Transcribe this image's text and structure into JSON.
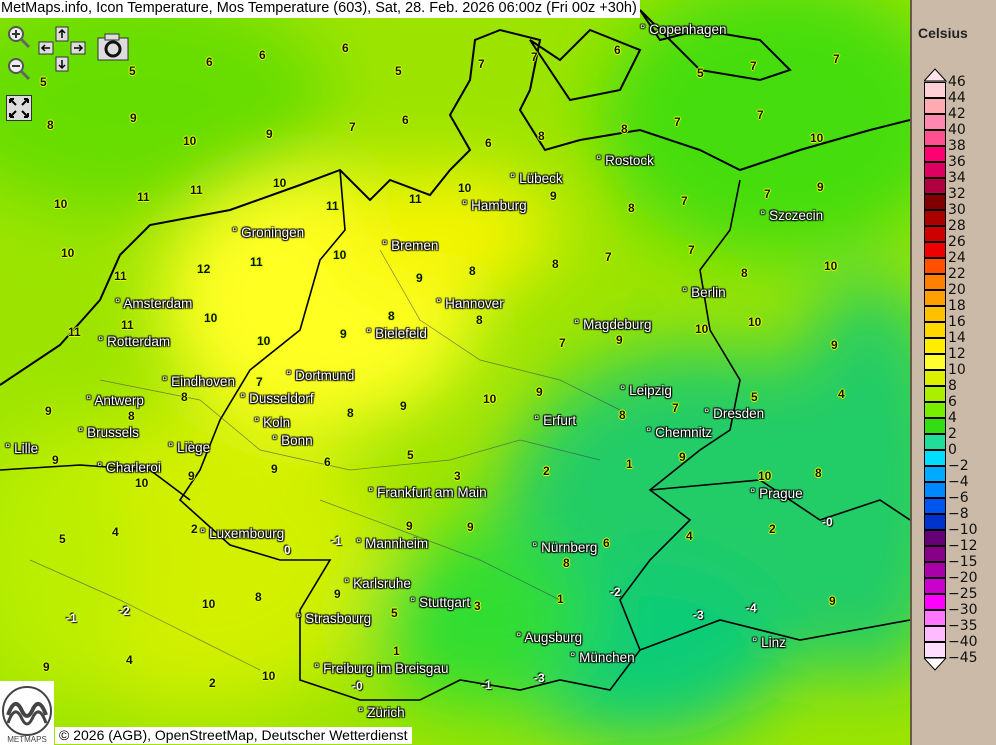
{
  "title": "MetMaps.info, Icon Temperature, Mos Temperature (603), Sat, 28. Feb. 2026 06:00z (Fri 00z +30h)",
  "controls": {
    "zoom_in": "zoom-in-icon",
    "zoom_out": "zoom-out-icon",
    "pan": "pan-arrows-icon",
    "screenshot": "camera-icon",
    "fullscreen": "fullscreen-icon"
  },
  "legend": {
    "title": "Celsius",
    "labels": [
      "46",
      "44",
      "42",
      "40",
      "38",
      "36",
      "34",
      "32",
      "30",
      "28",
      "26",
      "24",
      "22",
      "20",
      "18",
      "16",
      "14",
      "12",
      "10",
      "8",
      "6",
      "4",
      "2",
      "0",
      "−2",
      "−4",
      "−6",
      "−8",
      "−10",
      "−12",
      "−15",
      "−20",
      "−25",
      "−30",
      "−35",
      "−40",
      "−45"
    ],
    "colors": [
      "#ffd0d8",
      "#ffaab0",
      "#ff88b0",
      "#ff5090",
      "#ff0070",
      "#dd0060",
      "#b00040",
      "#800000",
      "#aa0000",
      "#cc0000",
      "#ee0000",
      "#ff5000",
      "#ff8000",
      "#ffa000",
      "#ffc000",
      "#ffd800",
      "#ffee00",
      "#ffff30",
      "#ddf000",
      "#aaee00",
      "#77ee00",
      "#33dd11",
      "#22dd99",
      "#00ddff",
      "#00aaff",
      "#0088ff",
      "#0055ee",
      "#0033cc",
      "#660077",
      "#880088",
      "#aa00aa",
      "#cc00cc",
      "#ff00ff",
      "#ff77ff",
      "#ffbbff",
      "#ffddff"
    ]
  },
  "cities": [
    "Copenhagen",
    "Rostock",
    "Lübeck",
    "Hamburg",
    "Szczecin",
    "Groningen",
    "Bremen",
    "Amsterdam",
    "Hannover",
    "Berlin",
    "Rotterdam",
    "Bielefeld",
    "Magdeburg",
    "Eindhoven",
    "Dortmund",
    "Antwerp",
    "Dusseldorf",
    "Leipzig",
    "Dresden",
    "Brussels",
    "Koln",
    "Erfurt",
    "Chemnitz",
    "Bonn",
    "Liège",
    "Lille",
    "Charleroi",
    "Frankfurt am Main",
    "Prague",
    "Luxembourg",
    "Mannheim",
    "Nürnberg",
    "Karlsruhe",
    "Stuttgart",
    "Strasbourg",
    "Augsburg",
    "Linz",
    "München",
    "Freiburg im Breisgau",
    "Zürich"
  ],
  "temperatures": [
    "5",
    "5",
    "6",
    "6",
    "6",
    "5",
    "7",
    "7",
    "6",
    "5",
    "7",
    "7",
    "8",
    "9",
    "10",
    "9",
    "7",
    "6",
    "6",
    "8",
    "8",
    "7",
    "7",
    "10",
    "10",
    "11",
    "11",
    "10",
    "11",
    "11",
    "10",
    "9",
    "8",
    "7",
    "7",
    "9",
    "10",
    "11",
    "12",
    "11",
    "10",
    "9",
    "8",
    "8",
    "7",
    "7",
    "8",
    "10",
    "11",
    "11",
    "10",
    "10",
    "9",
    "8",
    "8",
    "7",
    "9",
    "10",
    "10",
    "9",
    "9",
    "8",
    "8",
    "7",
    "8",
    "9",
    "10",
    "9",
    "8",
    "7",
    "5",
    "4",
    "9",
    "10",
    "9",
    "9",
    "6",
    "5",
    "3",
    "2",
    "1",
    "9",
    "10",
    "8",
    "5",
    "4",
    "2",
    "0",
    "-1",
    "9",
    "9",
    "8",
    "6",
    "4",
    "2",
    "-0",
    "-1",
    "-2",
    "10",
    "8",
    "9",
    "5",
    "3",
    "1",
    "-2",
    "-3",
    "-4",
    "9",
    "9",
    "4",
    "2",
    "10",
    "-0",
    "1",
    "-1",
    "-3"
  ],
  "copyright": "© 2026 (AGB), OpenStreetMap, Deutscher Wetterdienst",
  "logo_text": "METMAPS"
}
